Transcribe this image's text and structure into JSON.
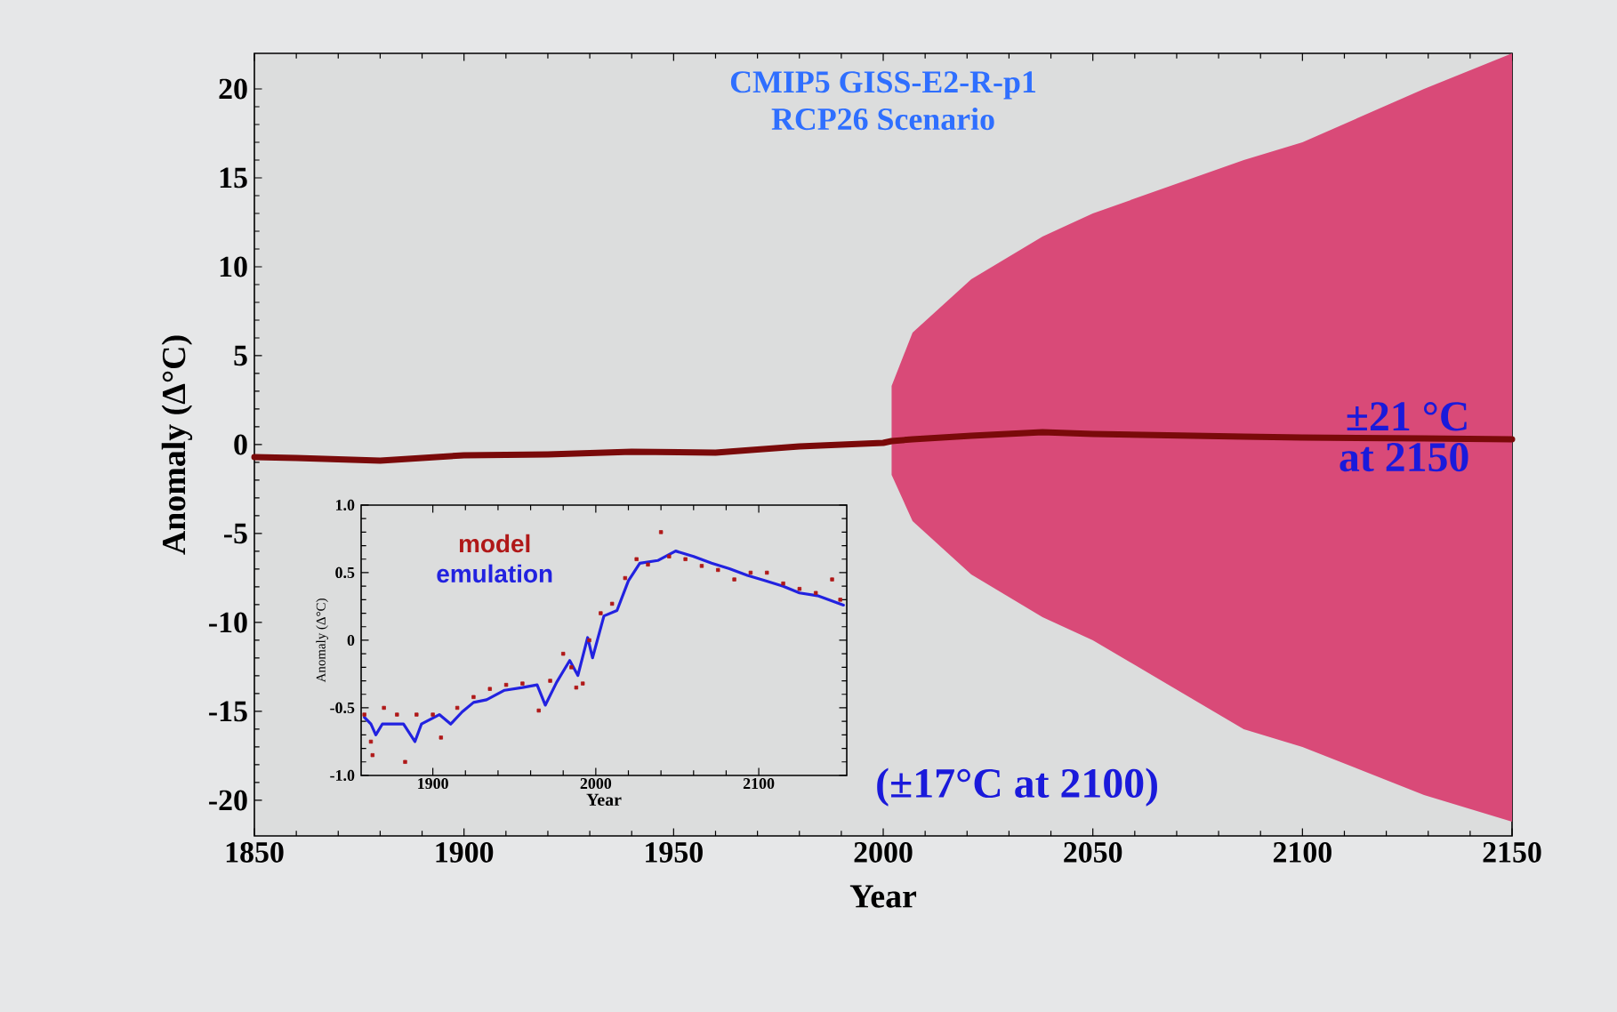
{
  "chart_data": [
    {
      "type": "line",
      "title": "CMIP5 GISS-E2-R-p1",
      "subtitle": "RCP26 Scenario",
      "xlabel": "Year",
      "ylabel": "Anomaly (Δ°C)",
      "xlim": [
        1850,
        2150
      ],
      "ylim": [
        -22,
        22
      ],
      "xticks": [
        1850,
        1900,
        1950,
        2000,
        2050,
        2100,
        2150
      ],
      "yticks": [
        -20,
        -15,
        -10,
        -5,
        0,
        5,
        10,
        15,
        20
      ],
      "annotations": [
        "±21 °C",
        "at 2150",
        "(±17°C at 2100)"
      ],
      "series": [
        {
          "color": "#7a0a0a",
          "x": [
            1850,
            1860,
            1880,
            1900,
            1920,
            1940,
            1960,
            1980,
            2000,
            2002,
            2007,
            2021,
            2038,
            2050,
            2086,
            2100,
            2129,
            2150
          ],
          "values": [
            -0.7,
            -0.75,
            -0.9,
            -0.6,
            -0.55,
            -0.4,
            -0.45,
            -0.1,
            0.1,
            0.2,
            0.3,
            0.5,
            0.7,
            0.6,
            0.45,
            0.4,
            0.35,
            0.3
          ],
          "upper": [
            null,
            null,
            null,
            null,
            null,
            null,
            null,
            null,
            null,
            3.3,
            6.3,
            9.3,
            11.7,
            13,
            16,
            17,
            20,
            22
          ],
          "lower": [
            null,
            null,
            null,
            null,
            null,
            null,
            null,
            null,
            null,
            -1.7,
            -4.3,
            -7.3,
            -9.7,
            -11,
            -16,
            -17,
            -19.7,
            -21.2
          ]
        }
      ]
    },
    {
      "type": "line",
      "xlabel": "Year",
      "ylabel": "Anomaly (Δ°C)",
      "xlim": [
        1856,
        2154
      ],
      "ylim": [
        -1,
        1
      ],
      "xticks": [
        1900,
        2000,
        2100
      ],
      "yticks": [
        {
          "value": -1,
          "label": "-1.0"
        },
        {
          "value": -0.5,
          "label": "-0.5"
        },
        0,
        {
          "value": 0.5,
          "label": "0.5"
        },
        {
          "value": 1,
          "label": "1.0"
        }
      ],
      "legend": "top left",
      "series": [
        {
          "name": "model",
          "type": "scatter",
          "marker": "square",
          "color": "#b01818",
          "x": [
            1858,
            1862,
            1863,
            1870,
            1878,
            1883,
            1890,
            1900,
            1905,
            1915,
            1925,
            1935,
            1945,
            1955,
            1965,
            1972,
            1980,
            1985,
            1988,
            1992,
            1996,
            2003,
            2010,
            2018,
            2025,
            2032,
            2040,
            2045,
            2055,
            2065,
            2075,
            2085,
            2095,
            2105,
            2115,
            2125,
            2135,
            2145,
            2150
          ],
          "values": [
            -0.55,
            -0.75,
            -0.85,
            -0.5,
            -0.55,
            -0.9,
            -0.55,
            -0.55,
            -0.72,
            -0.5,
            -0.42,
            -0.36,
            -0.33,
            -0.32,
            -0.52,
            -0.3,
            -0.1,
            -0.2,
            -0.35,
            -0.32,
            0.0,
            0.2,
            0.27,
            0.46,
            0.6,
            0.56,
            0.8,
            0.62,
            0.6,
            0.55,
            0.52,
            0.45,
            0.5,
            0.5,
            0.42,
            0.38,
            0.35,
            0.45,
            0.3
          ]
        },
        {
          "name": "emulation",
          "color": "#2222e0",
          "x": [
            1858,
            1862,
            1865,
            1869,
            1882,
            1889,
            1893,
            1904,
            1911,
            1918,
            1925,
            1933,
            1944,
            1955,
            1964,
            1969,
            1976,
            1984,
            1989,
            1995,
            1998,
            2005,
            2013,
            2020,
            2027,
            2038,
            2049,
            2060,
            2071,
            2082,
            2093,
            2104,
            2115,
            2125,
            2136,
            2152
          ],
          "values": [
            -0.57,
            -0.62,
            -0.7,
            -0.62,
            -0.62,
            -0.75,
            -0.62,
            -0.55,
            -0.62,
            -0.53,
            -0.46,
            -0.44,
            -0.37,
            -0.35,
            -0.33,
            -0.48,
            -0.31,
            -0.15,
            -0.26,
            0.02,
            -0.13,
            0.18,
            0.22,
            0.44,
            0.57,
            0.59,
            0.66,
            0.62,
            0.57,
            0.53,
            0.48,
            0.44,
            0.4,
            0.35,
            0.33,
            0.26
          ]
        }
      ]
    }
  ]
}
